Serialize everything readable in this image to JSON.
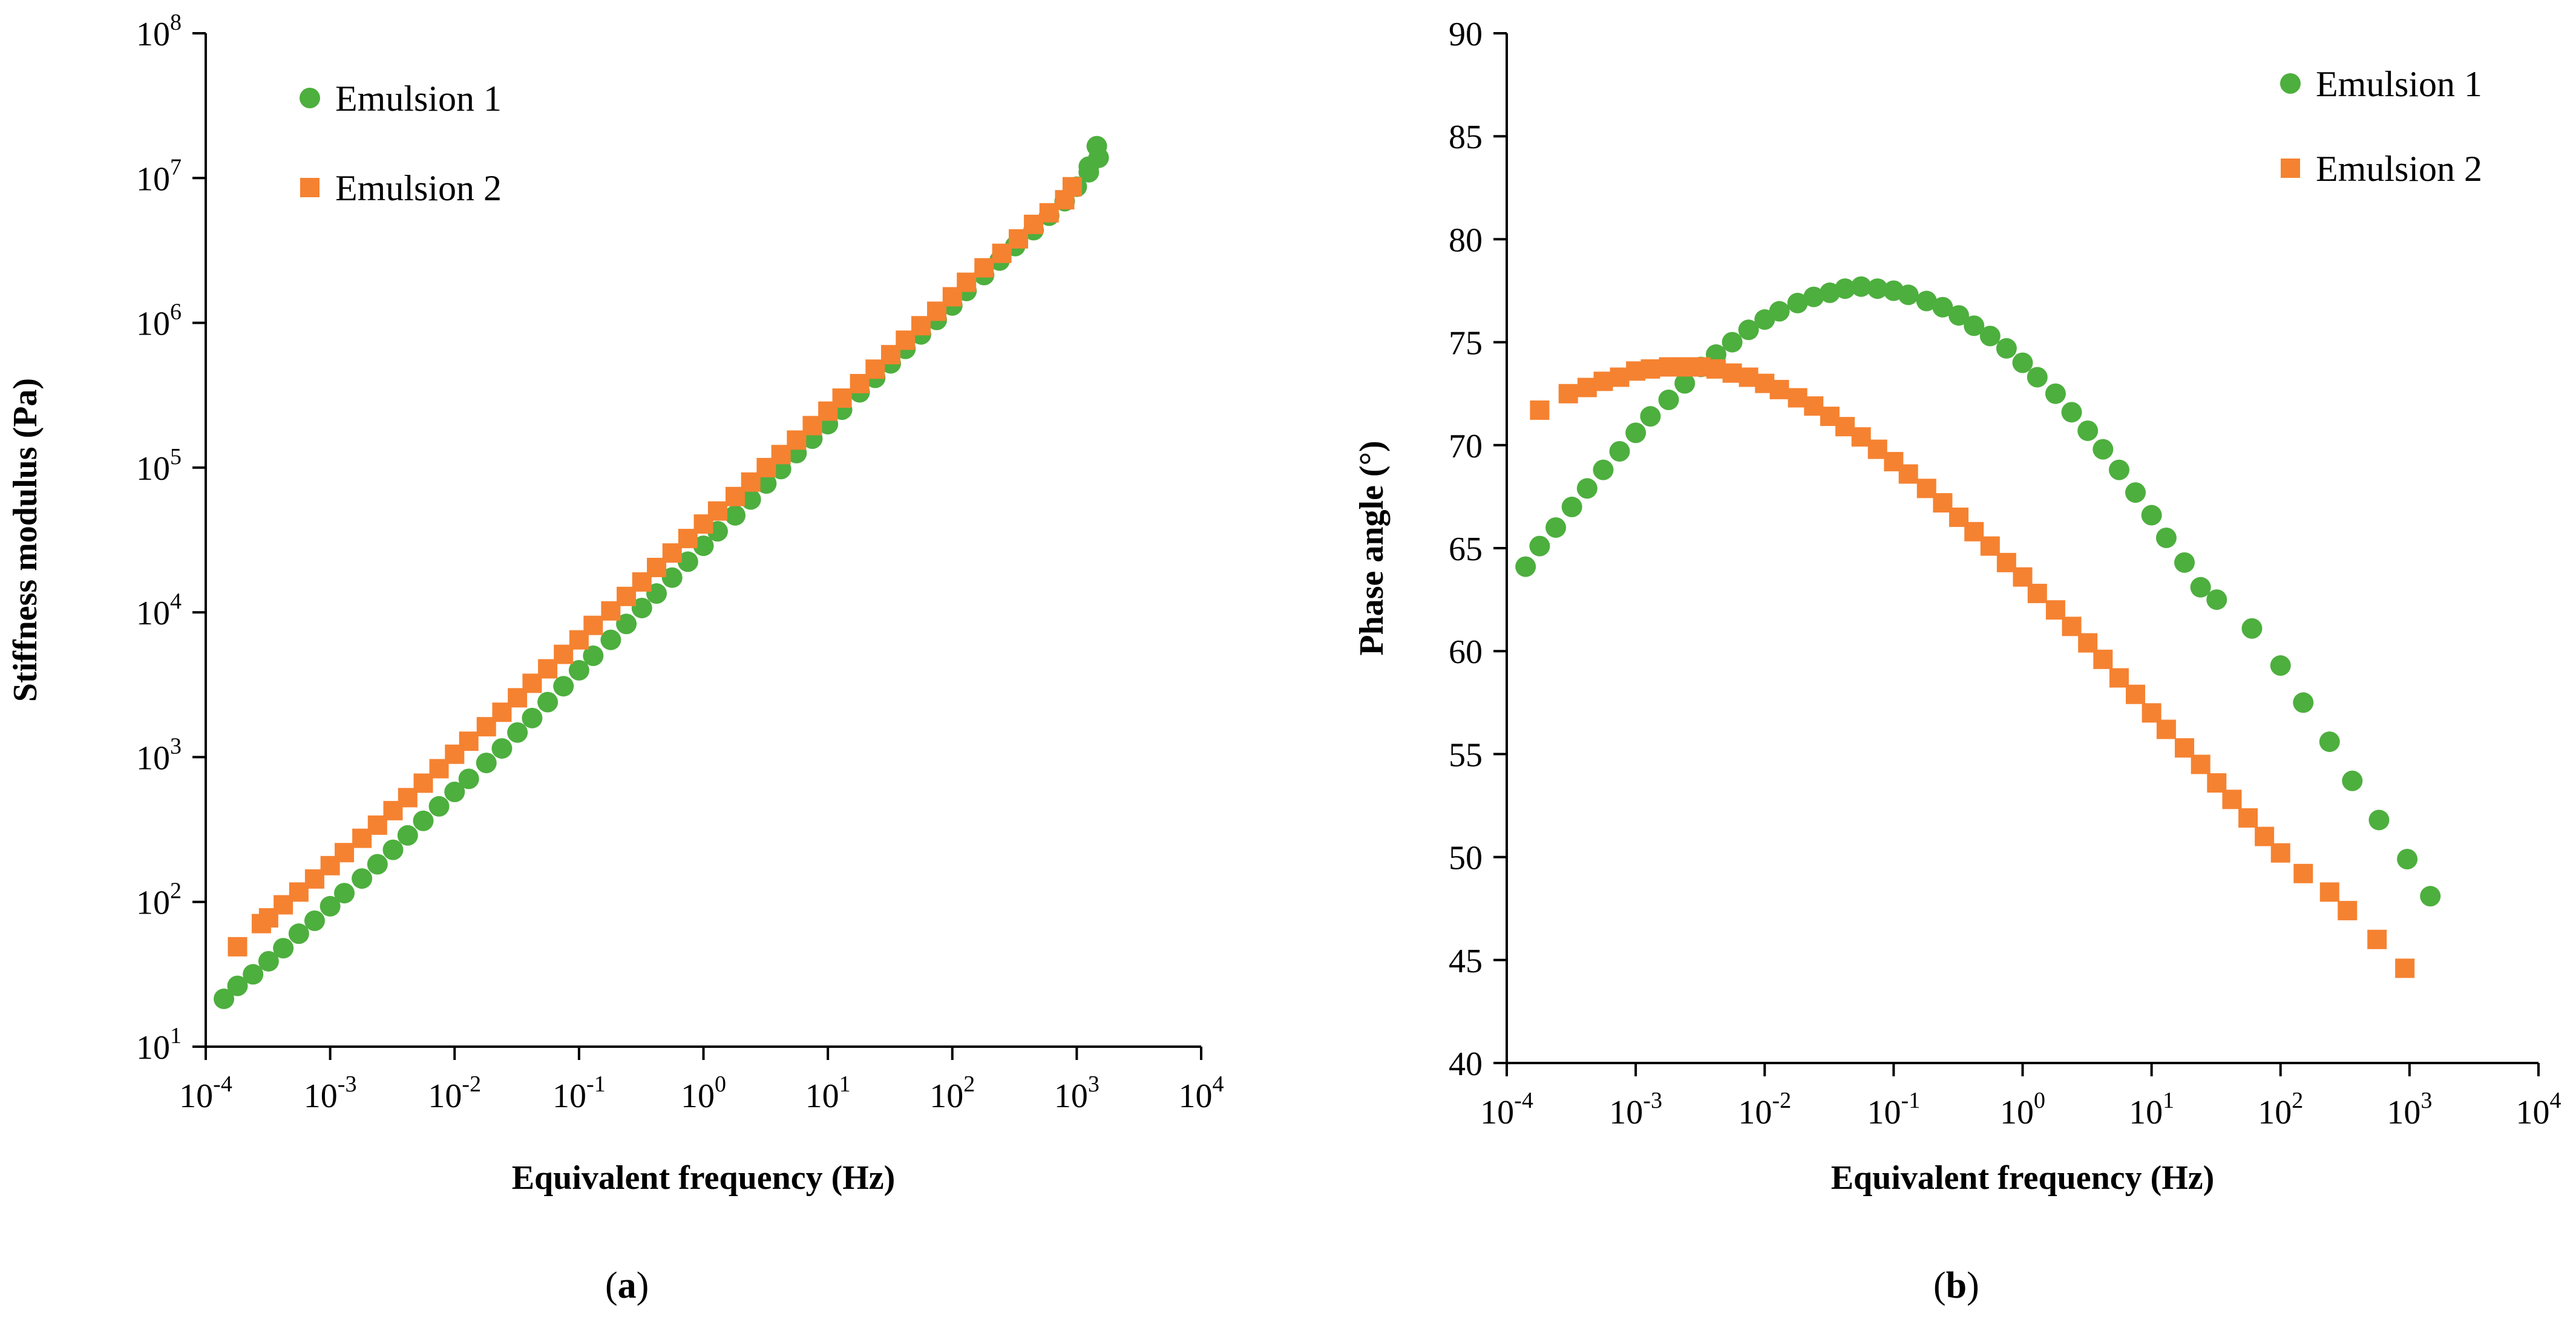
{
  "colors": {
    "emulsion1": "#4DAF3E",
    "emulsion2": "#F58231"
  },
  "chart_data": [
    {
      "id": "a",
      "panel_label": "a",
      "type": "scatter",
      "xscale": "log",
      "yscale": "log",
      "xlabel": "Equivalent frequency (Hz)",
      "ylabel": "Stiffness modulus (Pa)",
      "xlim": [
        0.0001,
        10000
      ],
      "ylim": [
        10,
        100000000
      ],
      "x_ticks": [
        {
          "v": 0.0001,
          "base": "10",
          "exp": "-4"
        },
        {
          "v": 0.001,
          "base": "10",
          "exp": "-3"
        },
        {
          "v": 0.01,
          "base": "10",
          "exp": "-2"
        },
        {
          "v": 0.1,
          "base": "10",
          "exp": "-1"
        },
        {
          "v": 1,
          "base": "10",
          "exp": "0"
        },
        {
          "v": 10,
          "base": "10",
          "exp": "1"
        },
        {
          "v": 100,
          "base": "10",
          "exp": "2"
        },
        {
          "v": 1000,
          "base": "10",
          "exp": "3"
        },
        {
          "v": 10000,
          "base": "10",
          "exp": "4"
        }
      ],
      "y_ticks": [
        {
          "v": 10,
          "base": "10",
          "exp": "1"
        },
        {
          "v": 100,
          "base": "10",
          "exp": "2"
        },
        {
          "v": 1000,
          "base": "10",
          "exp": "3"
        },
        {
          "v": 10000,
          "base": "10",
          "exp": "4"
        },
        {
          "v": 100000,
          "base": "10",
          "exp": "5"
        },
        {
          "v": 1000000,
          "base": "10",
          "exp": "6"
        },
        {
          "v": 10000000,
          "base": "10",
          "exp": "7"
        },
        {
          "v": 100000000,
          "base": "10",
          "exp": "8"
        }
      ],
      "legend_position": "top-left",
      "series": [
        {
          "name": "Emulsion 1",
          "marker": "circle",
          "color_key": "emulsion1",
          "points": [
            [
              0.00014,
              21.4
            ],
            [
              0.00018,
              26.3
            ],
            [
              0.00024,
              31.6
            ],
            [
              0.00032,
              38.9
            ],
            [
              0.00042,
              47.9
            ],
            [
              0.00056,
              60.3
            ],
            [
              0.00075,
              74.1
            ],
            [
              0.001,
              93.3
            ],
            [
              0.0013,
              115
            ],
            [
              0.0018,
              145
            ],
            [
              0.0024,
              182
            ],
            [
              0.0032,
              229
            ],
            [
              0.0042,
              288
            ],
            [
              0.0056,
              363
            ],
            [
              0.0075,
              457
            ],
            [
              0.01,
              575
            ],
            [
              0.013,
              708
            ],
            [
              0.018,
              912
            ],
            [
              0.024,
              1148
            ],
            [
              0.032,
              1479
            ],
            [
              0.042,
              1862
            ],
            [
              0.056,
              2399
            ],
            [
              0.075,
              3090
            ],
            [
              0.1,
              3981
            ],
            [
              0.13,
              5012
            ],
            [
              0.18,
              6457
            ],
            [
              0.24,
              8318
            ],
            [
              0.32,
              10715
            ],
            [
              0.42,
              13490
            ],
            [
              0.56,
              17378
            ],
            [
              0.75,
              22387
            ],
            [
              1,
              28840
            ],
            [
              1.3,
              36308
            ],
            [
              1.8,
              46774
            ],
            [
              2.4,
              60256
            ],
            [
              3.2,
              77625
            ],
            [
              4.2,
              97724
            ],
            [
              5.6,
              125893
            ],
            [
              7.5,
              158489
            ],
            [
              10,
              199526
            ],
            [
              13,
              251189
            ],
            [
              18,
              331131
            ],
            [
              24,
              416869
            ],
            [
              32,
              524807
            ],
            [
              42,
              660693
            ],
            [
              56,
              831764
            ],
            [
              75,
              1047129
            ],
            [
              100,
              1318257
            ],
            [
              130,
              1659587
            ],
            [
              180,
              2137962
            ],
            [
              240,
              2691535
            ],
            [
              320,
              3388442
            ],
            [
              450,
              4365158
            ],
            [
              600,
              5495409
            ],
            [
              800,
              6918310
            ],
            [
              1000,
              8709636
            ],
            [
              1250,
              10964782
            ],
            [
              1500,
              13803843
            ],
            [
              1250,
              12000000
            ],
            [
              1450,
              16595869
            ]
          ]
        },
        {
          "name": "Emulsion 2",
          "marker": "square",
          "color_key": "emulsion2",
          "points": [
            [
              0.00018,
              49
            ],
            [
              0.00028,
              70.8
            ],
            [
              0.00032,
              77.6
            ],
            [
              0.00042,
              95.5
            ],
            [
              0.00056,
              117
            ],
            [
              0.00075,
              144
            ],
            [
              0.001,
              178
            ],
            [
              0.0013,
              219
            ],
            [
              0.0018,
              275
            ],
            [
              0.0024,
              339
            ],
            [
              0.0032,
              427
            ],
            [
              0.0042,
              525
            ],
            [
              0.0056,
              661
            ],
            [
              0.0075,
              832
            ],
            [
              0.01,
              1047
            ],
            [
              0.013,
              1288
            ],
            [
              0.018,
              1622
            ],
            [
              0.024,
              2042
            ],
            [
              0.032,
              2570
            ],
            [
              0.042,
              3236
            ],
            [
              0.056,
              4074
            ],
            [
              0.075,
              5129
            ],
            [
              0.1,
              6457
            ],
            [
              0.13,
              8128
            ],
            [
              0.18,
              10233
            ],
            [
              0.24,
              12882
            ],
            [
              0.32,
              16218
            ],
            [
              0.42,
              20417
            ],
            [
              0.56,
              25704
            ],
            [
              0.75,
              32359
            ],
            [
              1,
              40738
            ],
            [
              1.3,
              50119
            ],
            [
              1.8,
              63096
            ],
            [
              2.4,
              79433
            ],
            [
              3.2,
              100000
            ],
            [
              4.2,
              123027
            ],
            [
              5.6,
              154882
            ],
            [
              7.5,
              194984
            ],
            [
              10,
              245471
            ],
            [
              13,
              301995
            ],
            [
              18,
              380189
            ],
            [
              24,
              478630
            ],
            [
              32,
              602560
            ],
            [
              42,
              758578
            ],
            [
              56,
              954993
            ],
            [
              75,
              1202264
            ],
            [
              100,
              1513561
            ],
            [
              130,
              1905461
            ],
            [
              180,
              2398833
            ],
            [
              250,
              3019952
            ],
            [
              340,
              3801894
            ],
            [
              450,
              4786301
            ],
            [
              600,
              5754399
            ],
            [
              800,
              7079458
            ],
            [
              920,
              8709636
            ]
          ]
        }
      ]
    },
    {
      "id": "b",
      "panel_label": "b",
      "type": "scatter",
      "xscale": "log",
      "yscale": "linear",
      "xlabel": "Equivalent frequency (Hz)",
      "ylabel": "Phase angle (°)",
      "xlim": [
        0.0001,
        10000
      ],
      "ylim": [
        40,
        90
      ],
      "x_ticks": [
        {
          "v": 0.0001,
          "base": "10",
          "exp": "-4"
        },
        {
          "v": 0.001,
          "base": "10",
          "exp": "-3"
        },
        {
          "v": 0.01,
          "base": "10",
          "exp": "-2"
        },
        {
          "v": 0.1,
          "base": "10",
          "exp": "-1"
        },
        {
          "v": 1,
          "base": "10",
          "exp": "0"
        },
        {
          "v": 10,
          "base": "10",
          "exp": "1"
        },
        {
          "v": 100,
          "base": "10",
          "exp": "2"
        },
        {
          "v": 1000,
          "base": "10",
          "exp": "3"
        },
        {
          "v": 10000,
          "base": "10",
          "exp": "4"
        }
      ],
      "y_ticks": [
        {
          "v": 40,
          "label": "40"
        },
        {
          "v": 45,
          "label": "45"
        },
        {
          "v": 50,
          "label": "50"
        },
        {
          "v": 55,
          "label": "55"
        },
        {
          "v": 60,
          "label": "60"
        },
        {
          "v": 65,
          "label": "65"
        },
        {
          "v": 70,
          "label": "70"
        },
        {
          "v": 75,
          "label": "75"
        },
        {
          "v": 80,
          "label": "80"
        },
        {
          "v": 85,
          "label": "85"
        },
        {
          "v": 90,
          "label": "90"
        }
      ],
      "legend_position": "top-right",
      "series": [
        {
          "name": "Emulsion 1",
          "marker": "circle",
          "color_key": "emulsion1",
          "points": [
            [
              0.00014,
              64.1
            ],
            [
              0.00018,
              65.1
            ],
            [
              0.00024,
              66.0
            ],
            [
              0.00032,
              67.0
            ],
            [
              0.00042,
              67.9
            ],
            [
              0.00056,
              68.8
            ],
            [
              0.00075,
              69.7
            ],
            [
              0.001,
              70.6
            ],
            [
              0.0013,
              71.4
            ],
            [
              0.0018,
              72.2
            ],
            [
              0.0024,
              73.0
            ],
            [
              0.0032,
              73.8
            ],
            [
              0.0042,
              74.4
            ],
            [
              0.0056,
              75.0
            ],
            [
              0.0075,
              75.6
            ],
            [
              0.01,
              76.1
            ],
            [
              0.013,
              76.5
            ],
            [
              0.018,
              76.9
            ],
            [
              0.024,
              77.2
            ],
            [
              0.032,
              77.4
            ],
            [
              0.042,
              77.6
            ],
            [
              0.056,
              77.7
            ],
            [
              0.075,
              77.6
            ],
            [
              0.1,
              77.5
            ],
            [
              0.13,
              77.3
            ],
            [
              0.18,
              77.0
            ],
            [
              0.24,
              76.7
            ],
            [
              0.32,
              76.3
            ],
            [
              0.42,
              75.8
            ],
            [
              0.56,
              75.3
            ],
            [
              0.75,
              74.7
            ],
            [
              1,
              74.0
            ],
            [
              1.3,
              73.3
            ],
            [
              1.8,
              72.5
            ],
            [
              2.4,
              71.6
            ],
            [
              3.2,
              70.7
            ],
            [
              4.2,
              69.8
            ],
            [
              5.6,
              68.8
            ],
            [
              7.5,
              67.7
            ],
            [
              10,
              66.6
            ],
            [
              13,
              65.5
            ],
            [
              18,
              64.3
            ],
            [
              24,
              63.1
            ],
            [
              32,
              62.5
            ],
            [
              60,
              61.1
            ],
            [
              100,
              59.3
            ],
            [
              150,
              57.5
            ],
            [
              240,
              55.6
            ],
            [
              360,
              53.7
            ],
            [
              580,
              51.8
            ],
            [
              960,
              49.9
            ],
            [
              1450,
              48.1
            ]
          ]
        },
        {
          "name": "Emulsion 2",
          "marker": "square",
          "color_key": "emulsion2",
          "points": [
            [
              0.00018,
              71.7
            ],
            [
              0.0003,
              72.5
            ],
            [
              0.00042,
              72.8
            ],
            [
              0.00056,
              73.1
            ],
            [
              0.00075,
              73.3
            ],
            [
              0.001,
              73.6
            ],
            [
              0.0013,
              73.7
            ],
            [
              0.0018,
              73.8
            ],
            [
              0.0024,
              73.8
            ],
            [
              0.0032,
              73.8
            ],
            [
              0.0042,
              73.7
            ],
            [
              0.0056,
              73.5
            ],
            [
              0.0075,
              73.3
            ],
            [
              0.01,
              73.0
            ],
            [
              0.013,
              72.7
            ],
            [
              0.018,
              72.3
            ],
            [
              0.024,
              71.9
            ],
            [
              0.032,
              71.4
            ],
            [
              0.042,
              70.9
            ],
            [
              0.056,
              70.4
            ],
            [
              0.075,
              69.8
            ],
            [
              0.1,
              69.2
            ],
            [
              0.13,
              68.6
            ],
            [
              0.18,
              67.9
            ],
            [
              0.24,
              67.2
            ],
            [
              0.32,
              66.5
            ],
            [
              0.42,
              65.8
            ],
            [
              0.56,
              65.1
            ],
            [
              0.75,
              64.3
            ],
            [
              1,
              63.6
            ],
            [
              1.3,
              62.8
            ],
            [
              1.8,
              62.0
            ],
            [
              2.4,
              61.2
            ],
            [
              3.2,
              60.4
            ],
            [
              4.2,
              59.6
            ],
            [
              5.6,
              58.7
            ],
            [
              7.5,
              57.9
            ],
            [
              10,
              57.0
            ],
            [
              13,
              56.2
            ],
            [
              18,
              55.3
            ],
            [
              24,
              54.5
            ],
            [
              32,
              53.6
            ],
            [
              42,
              52.8
            ],
            [
              56,
              51.9
            ],
            [
              75,
              51.0
            ],
            [
              100,
              50.2
            ],
            [
              150,
              49.2
            ],
            [
              240,
              48.3
            ],
            [
              330,
              47.4
            ],
            [
              560,
              46.0
            ],
            [
              920,
              44.6
            ]
          ]
        }
      ]
    }
  ]
}
